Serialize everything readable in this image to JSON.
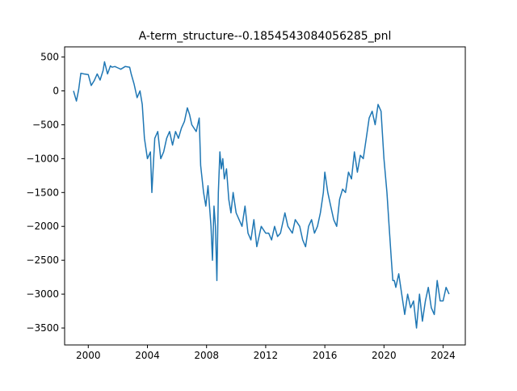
{
  "chart_data": {
    "type": "line",
    "title": "A-term_structure--0.1854543084056285_pnl",
    "xlabel": "",
    "ylabel": "",
    "xlim": [
      1998.4,
      2025.5
    ],
    "ylim": [
      -3750,
      650
    ],
    "grid": false,
    "x_ticks": [
      2000,
      2004,
      2008,
      2012,
      2016,
      2020,
      2024
    ],
    "x_tick_labels": [
      "2000",
      "2004",
      "2008",
      "2012",
      "2016",
      "2020",
      "2024"
    ],
    "y_ticks": [
      500,
      0,
      -500,
      -1000,
      -1500,
      -2000,
      -2500,
      -3000,
      -3500
    ],
    "y_tick_labels": [
      "500",
      "0",
      "−500",
      "−1000",
      "−1500",
      "−2000",
      "−2500",
      "−3000",
      "−3500"
    ],
    "series": [
      {
        "color": "#1f77b4",
        "x": [
          1999.0,
          1999.2,
          1999.35,
          1999.5,
          1999.7,
          2000.0,
          2000.2,
          2000.4,
          2000.6,
          2000.8,
          2001.0,
          2001.1,
          2001.3,
          2001.5,
          2001.6,
          2001.8,
          2002.0,
          2002.2,
          2002.5,
          2002.8,
          2002.9,
          2003.1,
          2003.3,
          2003.5,
          2003.65,
          2003.8,
          2004.0,
          2004.2,
          2004.3,
          2004.5,
          2004.7,
          2004.9,
          2005.1,
          2005.3,
          2005.5,
          2005.7,
          2005.9,
          2006.1,
          2006.3,
          2006.5,
          2006.7,
          2006.85,
          2007.0,
          2007.3,
          2007.5,
          2007.6,
          2007.8,
          2007.95,
          2008.1,
          2008.3,
          2008.4,
          2008.5,
          2008.6,
          2008.7,
          2008.8,
          2008.9,
          2009.0,
          2009.1,
          2009.2,
          2009.35,
          2009.5,
          2009.65,
          2009.8,
          2010.0,
          2010.2,
          2010.4,
          2010.6,
          2010.8,
          2011.0,
          2011.2,
          2011.4,
          2011.7,
          2012.0,
          2012.2,
          2012.4,
          2012.6,
          2012.8,
          2013.0,
          2013.3,
          2013.5,
          2013.8,
          2014.0,
          2014.3,
          2014.5,
          2014.7,
          2014.9,
          2015.1,
          2015.3,
          2015.5,
          2015.7,
          2015.9,
          2016.0,
          2016.2,
          2016.4,
          2016.6,
          2016.8,
          2017.0,
          2017.2,
          2017.4,
          2017.6,
          2017.8,
          2018.0,
          2018.2,
          2018.4,
          2018.6,
          2018.8,
          2019.0,
          2019.2,
          2019.4,
          2019.6,
          2019.8,
          2020.0,
          2020.2,
          2020.35,
          2020.5,
          2020.6,
          2020.7,
          2020.8,
          2021.0,
          2021.2,
          2021.4,
          2021.6,
          2021.8,
          2022.0,
          2022.2,
          2022.4,
          2022.6,
          2022.8,
          2023.0,
          2023.2,
          2023.4,
          2023.6,
          2023.8,
          2024.0,
          2024.2,
          2024.4
        ],
        "y": [
          0,
          -150,
          20,
          260,
          250,
          240,
          80,
          150,
          250,
          160,
          300,
          430,
          250,
          370,
          350,
          360,
          340,
          320,
          360,
          350,
          250,
          100,
          -100,
          0,
          -200,
          -700,
          -1000,
          -900,
          -1500,
          -700,
          -600,
          -1000,
          -900,
          -700,
          -600,
          -800,
          -600,
          -700,
          -550,
          -450,
          -250,
          -350,
          -500,
          -600,
          -400,
          -1100,
          -1500,
          -1700,
          -1400,
          -2000,
          -2500,
          -1700,
          -2000,
          -2800,
          -1500,
          -900,
          -1150,
          -1000,
          -1300,
          -1150,
          -1600,
          -1800,
          -1500,
          -1800,
          -1900,
          -2000,
          -1700,
          -2100,
          -2200,
          -1900,
          -2300,
          -2000,
          -2100,
          -2100,
          -2200,
          -2000,
          -2150,
          -2100,
          -1800,
          -2000,
          -2100,
          -1900,
          -2000,
          -2200,
          -2300,
          -2000,
          -1900,
          -2100,
          -2000,
          -1800,
          -1500,
          -1200,
          -1500,
          -1700,
          -1900,
          -2000,
          -1600,
          -1450,
          -1500,
          -1200,
          -1300,
          -900,
          -1200,
          -950,
          -1000,
          -700,
          -400,
          -300,
          -500,
          -200,
          -300,
          -1000,
          -1500,
          -2000,
          -2500,
          -2800,
          -2800,
          -2900,
          -2700,
          -3000,
          -3300,
          -3000,
          -3200,
          -3100,
          -3500,
          -3000,
          -3400,
          -3100,
          -2900,
          -3200,
          -3300,
          -2800,
          -3100,
          -3100,
          -2900,
          -3000
        ]
      }
    ]
  }
}
